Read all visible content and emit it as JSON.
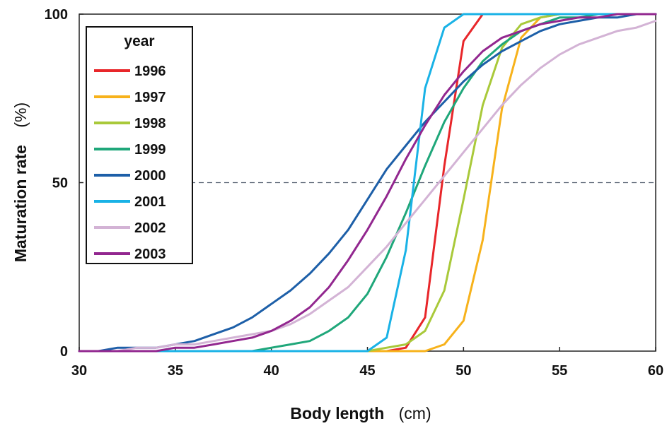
{
  "chart_data": {
    "type": "line",
    "xlabel": "Body length",
    "xlabel_unit": "(cm)",
    "ylabel": "Maturation rate",
    "ylabel_unit": "(%)",
    "xlim": [
      30,
      60
    ],
    "ylim": [
      0,
      100
    ],
    "x_ticks": [
      "30",
      "35",
      "40",
      "45",
      "50",
      "55",
      "60"
    ],
    "y_ticks": [
      "0",
      "50",
      "100"
    ],
    "reference_line": {
      "y": 50,
      "style": "dashed"
    },
    "legend": {
      "title": "year",
      "position": "top-left"
    },
    "x": [
      30,
      31,
      32,
      33,
      34,
      35,
      36,
      37,
      38,
      39,
      40,
      41,
      42,
      43,
      44,
      45,
      46,
      47,
      48,
      49,
      50,
      51,
      52,
      53,
      54,
      55,
      56,
      57,
      58,
      59,
      60
    ],
    "series": [
      {
        "name": "1996",
        "color": "#e8262a",
        "values": [
          0,
          0,
          0,
          0,
          0,
          0,
          0,
          0,
          0,
          0,
          0,
          0,
          0,
          0,
          0,
          0,
          0,
          1,
          10,
          55,
          92,
          100,
          100,
          100,
          100,
          100,
          100,
          100,
          100,
          100,
          100
        ]
      },
      {
        "name": "1997",
        "color": "#f7b21b",
        "values": [
          0,
          0,
          0,
          0,
          0,
          0,
          0,
          0,
          0,
          0,
          0,
          0,
          0,
          0,
          0,
          0,
          0,
          0,
          0,
          2,
          9,
          33,
          72,
          93,
          99,
          100,
          100,
          100,
          100,
          100,
          100
        ]
      },
      {
        "name": "1998",
        "color": "#a9c93a",
        "values": [
          0,
          0,
          0,
          0,
          0,
          0,
          0,
          0,
          0,
          0,
          0,
          0,
          0,
          0,
          0,
          0,
          1,
          2,
          6,
          18,
          45,
          73,
          90,
          97,
          99,
          100,
          100,
          100,
          100,
          100,
          100
        ]
      },
      {
        "name": "1999",
        "color": "#1fa77a",
        "values": [
          0,
          0,
          0,
          0,
          0,
          0,
          0,
          0,
          0,
          0,
          1,
          2,
          3,
          6,
          10,
          17,
          28,
          41,
          55,
          68,
          78,
          86,
          91,
          95,
          97,
          99,
          99,
          100,
          100,
          100,
          100
        ]
      },
      {
        "name": "2000",
        "color": "#1d5fa8",
        "values": [
          0,
          0,
          1,
          1,
          1,
          2,
          3,
          5,
          7,
          10,
          14,
          18,
          23,
          29,
          36,
          45,
          54,
          61,
          68,
          74,
          80,
          85,
          89,
          92,
          95,
          97,
          98,
          99,
          99,
          100,
          100
        ]
      },
      {
        "name": "2001",
        "color": "#19b2e6",
        "values": [
          0,
          0,
          0,
          0,
          0,
          0,
          0,
          0,
          0,
          0,
          0,
          0,
          0,
          0,
          0,
          0,
          4,
          30,
          78,
          96,
          100,
          100,
          100,
          100,
          100,
          100,
          100,
          100,
          100,
          100,
          100
        ]
      },
      {
        "name": "2002",
        "color": "#d3b3d5",
        "values": [
          0,
          0,
          0,
          1,
          1,
          2,
          2,
          3,
          4,
          5,
          6,
          8,
          11,
          15,
          19,
          25,
          31,
          38,
          45,
          52,
          59,
          66,
          73,
          79,
          84,
          88,
          91,
          93,
          95,
          96,
          98
        ]
      },
      {
        "name": "2003",
        "color": "#92278f",
        "values": [
          0,
          0,
          0,
          0,
          0,
          1,
          1,
          2,
          3,
          4,
          6,
          9,
          13,
          19,
          27,
          36,
          46,
          57,
          67,
          76,
          83,
          89,
          93,
          95,
          97,
          98,
          99,
          99,
          100,
          100,
          100
        ]
      }
    ]
  }
}
